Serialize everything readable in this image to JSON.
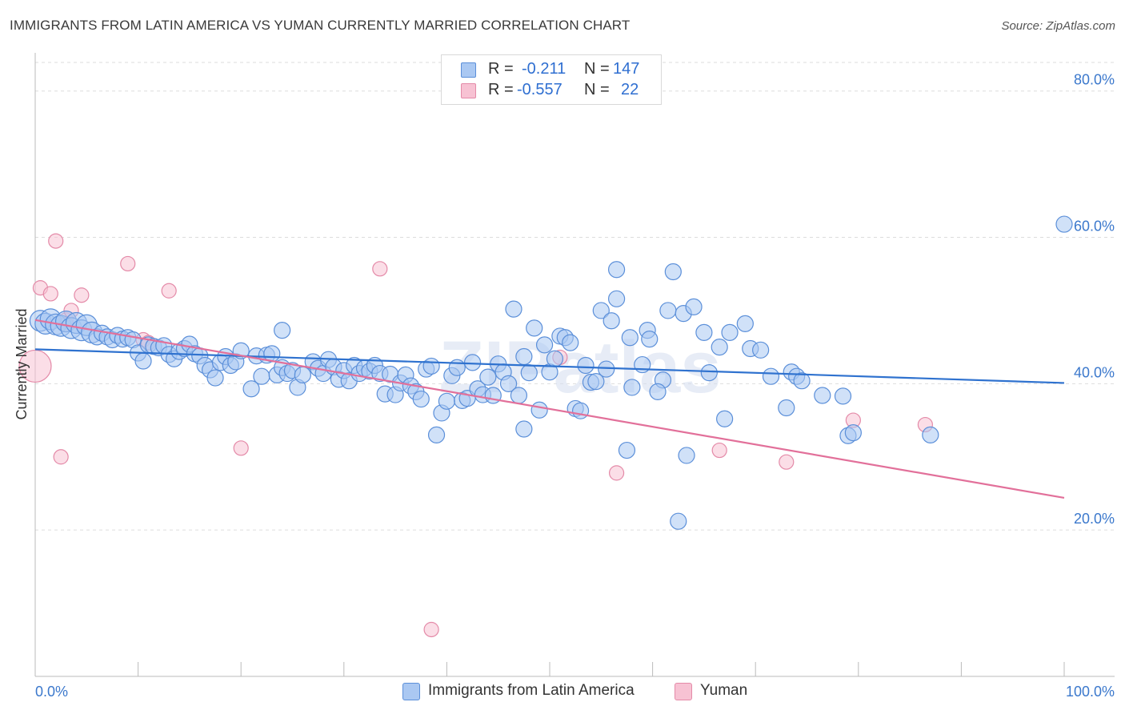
{
  "title": "IMMIGRANTS FROM LATIN AMERICA VS YUMAN CURRENTLY MARRIED CORRELATION CHART",
  "source": "Source: ZipAtlas.com",
  "watermark": "ZIPatlas",
  "legend": {
    "rows": [
      {
        "r_label": "R =",
        "r_value": "-0.211",
        "n_label": "N =",
        "n_value": "147"
      },
      {
        "r_label": "R =",
        "r_value": "-0.557",
        "n_label": "N =",
        "n_value": "22"
      }
    ]
  },
  "bottom_legend": [
    "Immigrants from Latin America",
    "Yuman"
  ],
  "colors": {
    "blue_fill": "#aac8f2",
    "blue_stroke": "#5b8fd9",
    "blue_line": "#2f72cf",
    "pink_fill": "#f7c2d3",
    "pink_stroke": "#e48aa8",
    "pink_line": "#e2709a",
    "tick_text": "#3b78cc",
    "grid": "#dddddd"
  },
  "chart_data": {
    "type": "scatter",
    "title": "IMMIGRANTS FROM LATIN AMERICA VS YUMAN CURRENTLY MARRIED CORRELATION CHART",
    "xlabel": "",
    "ylabel": "Currently Married",
    "xlim": [
      0,
      100
    ],
    "ylim": [
      0,
      85
    ],
    "x_tick_labels": [
      "0.0%",
      "100.0%"
    ],
    "y_ticks": [
      20,
      40,
      60,
      80
    ],
    "y_tick_labels": [
      "20.0%",
      "40.0%",
      "60.0%",
      "80.0%"
    ],
    "grid": true,
    "legend_position": "top-center",
    "series": [
      {
        "name": "Immigrants from Latin America",
        "r": -0.211,
        "n": 147,
        "trend": [
          [
            0,
            44.7
          ],
          [
            100,
            40.1
          ]
        ],
        "points": [
          [
            0.5,
            48.6
          ],
          [
            1.0,
            48.2
          ],
          [
            1.5,
            48.8
          ],
          [
            2.0,
            48.1
          ],
          [
            2.5,
            47.9
          ],
          [
            3.0,
            48.5
          ],
          [
            3.5,
            47.6
          ],
          [
            4.0,
            48.3
          ],
          [
            4.5,
            47.3
          ],
          [
            5.0,
            48.0
          ],
          [
            5.5,
            47.0
          ],
          [
            6.0,
            46.4
          ],
          [
            6.5,
            46.9
          ],
          [
            7.0,
            46.4
          ],
          [
            7.5,
            46.0
          ],
          [
            8.0,
            46.6
          ],
          [
            8.5,
            46.1
          ],
          [
            9.0,
            46.3
          ],
          [
            9.5,
            46.0
          ],
          [
            10.0,
            44.2
          ],
          [
            10.5,
            43.1
          ],
          [
            11.0,
            45.3
          ],
          [
            11.5,
            45.1
          ],
          [
            12.0,
            44.9
          ],
          [
            12.5,
            45.2
          ],
          [
            13.0,
            44.0
          ],
          [
            13.5,
            43.4
          ],
          [
            14.0,
            44.4
          ],
          [
            14.5,
            44.8
          ],
          [
            15.0,
            45.4
          ],
          [
            15.5,
            44.1
          ],
          [
            16.0,
            43.8
          ],
          [
            16.5,
            42.5
          ],
          [
            17.0,
            41.9
          ],
          [
            17.5,
            40.8
          ],
          [
            18.0,
            42.9
          ],
          [
            18.5,
            43.7
          ],
          [
            19.0,
            42.5
          ],
          [
            19.5,
            43.0
          ],
          [
            20.0,
            44.5
          ],
          [
            21.0,
            39.3
          ],
          [
            21.5,
            43.8
          ],
          [
            22.0,
            41.0
          ],
          [
            22.5,
            43.9
          ],
          [
            23.0,
            44.1
          ],
          [
            23.5,
            41.2
          ],
          [
            24.0,
            42.2
          ],
          [
            24.5,
            41.4
          ],
          [
            25.0,
            41.8
          ],
          [
            25.5,
            39.5
          ],
          [
            26.0,
            41.2
          ],
          [
            27.0,
            43.0
          ],
          [
            27.5,
            42.1
          ],
          [
            28.0,
            41.4
          ],
          [
            28.5,
            43.3
          ],
          [
            29.0,
            42.3
          ],
          [
            29.5,
            40.6
          ],
          [
            30.0,
            41.8
          ],
          [
            30.5,
            40.4
          ],
          [
            31.0,
            42.5
          ],
          [
            31.5,
            41.4
          ],
          [
            32.0,
            42.1
          ],
          [
            32.5,
            41.7
          ],
          [
            33.0,
            42.5
          ],
          [
            33.5,
            41.4
          ],
          [
            34.0,
            38.6
          ],
          [
            34.5,
            41.3
          ],
          [
            35.0,
            38.5
          ],
          [
            35.5,
            40.1
          ],
          [
            36.0,
            41.2
          ],
          [
            36.5,
            39.7
          ],
          [
            37.0,
            38.9
          ],
          [
            37.5,
            37.9
          ],
          [
            38.0,
            42.0
          ],
          [
            38.5,
            42.4
          ],
          [
            39.0,
            33.0
          ],
          [
            39.5,
            36.0
          ],
          [
            40.0,
            37.6
          ],
          [
            40.5,
            41.1
          ],
          [
            41.0,
            42.2
          ],
          [
            41.5,
            37.7
          ],
          [
            42.0,
            38.0
          ],
          [
            42.5,
            42.9
          ],
          [
            43.0,
            39.3
          ],
          [
            43.5,
            38.5
          ],
          [
            44.0,
            40.9
          ],
          [
            44.5,
            38.4
          ],
          [
            45.0,
            42.7
          ],
          [
            45.5,
            41.6
          ],
          [
            46.0,
            40.0
          ],
          [
            46.5,
            50.2
          ],
          [
            47.0,
            38.4
          ],
          [
            47.5,
            43.7
          ],
          [
            48.0,
            41.5
          ],
          [
            48.5,
            47.6
          ],
          [
            49.0,
            36.4
          ],
          [
            49.5,
            45.3
          ],
          [
            50.0,
            41.6
          ],
          [
            50.5,
            43.4
          ],
          [
            51.0,
            46.5
          ],
          [
            51.5,
            46.3
          ],
          [
            52.0,
            45.6
          ],
          [
            52.5,
            36.6
          ],
          [
            53.0,
            36.3
          ],
          [
            53.5,
            42.5
          ],
          [
            54.0,
            40.2
          ],
          [
            54.5,
            40.3
          ],
          [
            55.0,
            50.0
          ],
          [
            55.5,
            42.0
          ],
          [
            56.0,
            48.6
          ],
          [
            56.5,
            51.6
          ],
          [
            57.5,
            30.9
          ],
          [
            57.8,
            46.3
          ],
          [
            58.0,
            39.5
          ],
          [
            59.0,
            42.6
          ],
          [
            59.5,
            47.3
          ],
          [
            59.7,
            46.1
          ],
          [
            61.0,
            40.5
          ],
          [
            61.5,
            50.0
          ],
          [
            62.0,
            55.3
          ],
          [
            62.5,
            21.2
          ],
          [
            63.0,
            49.6
          ],
          [
            63.3,
            30.2
          ],
          [
            64.0,
            50.5
          ],
          [
            65.0,
            47.0
          ],
          [
            65.5,
            41.5
          ],
          [
            66.5,
            45.0
          ],
          [
            67.0,
            35.2
          ],
          [
            67.5,
            47.0
          ],
          [
            69.0,
            48.2
          ],
          [
            69.5,
            44.8
          ],
          [
            70.5,
            44.6
          ],
          [
            71.5,
            41.0
          ],
          [
            73.0,
            36.7
          ],
          [
            73.5,
            41.6
          ],
          [
            74.0,
            41.0
          ],
          [
            74.5,
            40.4
          ],
          [
            76.5,
            38.4
          ],
          [
            79.0,
            32.9
          ],
          [
            79.5,
            33.3
          ],
          [
            78.5,
            38.3
          ],
          [
            87.0,
            33.0
          ],
          [
            100.0,
            61.8
          ],
          [
            56.5,
            55.6
          ],
          [
            47.5,
            33.8
          ],
          [
            24.0,
            47.3
          ],
          [
            60.5,
            38.9
          ]
        ]
      },
      {
        "name": "Yuman",
        "r": -0.557,
        "n": 22,
        "trend": [
          [
            0,
            48.7
          ],
          [
            100,
            24.4
          ]
        ],
        "points": [
          [
            0.0,
            42.4
          ],
          [
            0.5,
            53.1
          ],
          [
            1.5,
            52.3
          ],
          [
            2.0,
            59.5
          ],
          [
            2.5,
            30.0
          ],
          [
            3.0,
            48.7
          ],
          [
            3.5,
            50.0
          ],
          [
            4.5,
            52.1
          ],
          [
            9.0,
            56.4
          ],
          [
            10.5,
            46.0
          ],
          [
            11.0,
            45.6
          ],
          [
            13.0,
            52.7
          ],
          [
            20.0,
            31.2
          ],
          [
            33.5,
            55.7
          ],
          [
            38.5,
            6.4
          ],
          [
            51.0,
            43.6
          ],
          [
            56.5,
            27.8
          ],
          [
            66.5,
            30.9
          ],
          [
            73.0,
            29.3
          ],
          [
            79.5,
            35.0
          ],
          [
            86.5,
            34.4
          ],
          [
            3.0,
            48.1
          ]
        ]
      }
    ]
  }
}
